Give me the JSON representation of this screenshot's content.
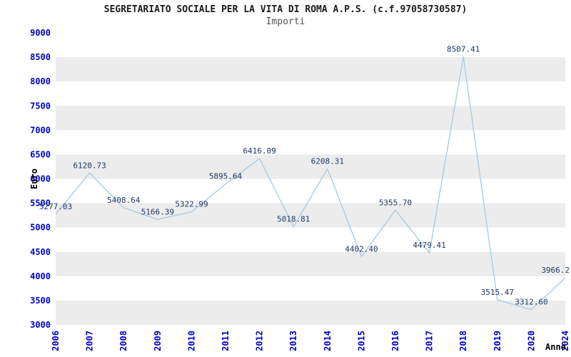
{
  "title": "SEGRETARIATO SOCIALE PER LA VITA DI ROMA A.P.S. (c.f.97058730587)",
  "subtitle": "Importi",
  "chart_data": {
    "type": "line",
    "title": "SEGRETARIATO SOCIALE PER LA VITA DI ROMA A.P.S. (c.f.97058730587)",
    "subtitle": "Importi",
    "xlabel": "Anno",
    "ylabel": "Euro",
    "categories": [
      "2006",
      "2007",
      "2008",
      "2009",
      "2010",
      "2011",
      "2012",
      "2013",
      "2014",
      "2015",
      "2016",
      "2017",
      "2018",
      "2019",
      "2020",
      "2024"
    ],
    "values": [
      5277.03,
      6120.73,
      5408.64,
      5166.39,
      5322.99,
      5895.64,
      6416.09,
      5018.81,
      6208.31,
      4402.4,
      5355.7,
      4479.41,
      8507.41,
      3515.47,
      3312.6,
      3966.2
    ],
    "point_labels": [
      "5277.03",
      "6120.73",
      "5408.64",
      "5166.39",
      "5322.99",
      "5895.64",
      "6416.09",
      "5018.81",
      "6208.31",
      "4402.40",
      "5355.70",
      "4479.41",
      "8507.41",
      "3515.47",
      "3312.60",
      "3966.2"
    ],
    "ylim": [
      3000,
      9000
    ],
    "ytick_step": 500,
    "legend": "none",
    "grid": "alternating-horizontal-bands",
    "colors": {
      "line": "#a6c9e2",
      "band": "#ececec",
      "tick_labels": "#0000cc",
      "point_labels": "#1f3864",
      "axis_titles": "#000000"
    }
  }
}
